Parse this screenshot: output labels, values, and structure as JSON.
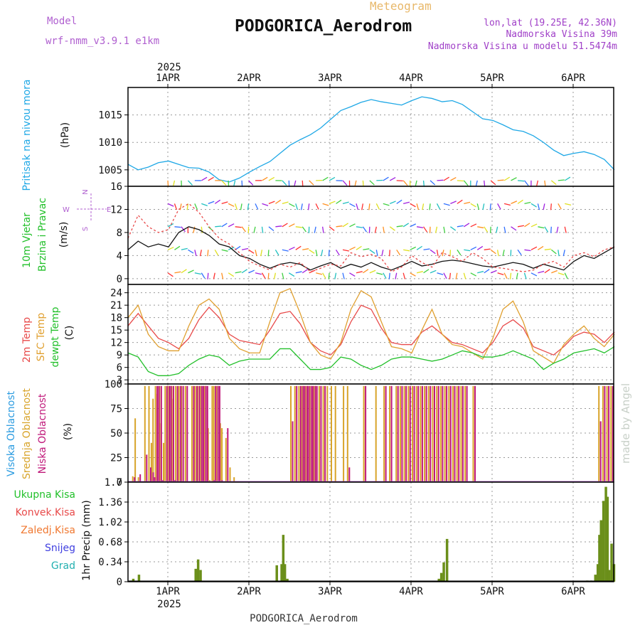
{
  "header": {
    "model_label": "Model",
    "model_name": "wrf-nmm_v3.9.1 e1km",
    "meteogram_label": "Meteogram",
    "station": "PODGORICA_Aerodrom",
    "lonlat": "lon,lat (19.25E, 42.36N)",
    "altitude": "Nadmorska Visina 39m",
    "model_altitude": "Nadmorska Visina u modelu 51.5474m",
    "footer_station": "PODGORICA_Aerodrom",
    "credit": "made by Angel"
  },
  "time_axis": {
    "year": "2025",
    "days": [
      "1APR",
      "2APR",
      "3APR",
      "4APR",
      "5APR",
      "6APR"
    ]
  },
  "colors": {
    "pressure": "#1fa8e6",
    "temp2m": "#e84a4a",
    "sfc_temp": "#e0a030",
    "dewpoint": "#22c02a",
    "cloud_high": "#2a9be0",
    "cloud_mid": "#d8a42a",
    "cloud_low": "#c0187a",
    "precip": "#6b8f1a",
    "precip_conv": "#e33",
    "model": "#b060d0",
    "info": "#a040c8",
    "meteogram": "#e8b86a"
  },
  "chart_data": [
    {
      "type": "line",
      "panel": "pressure",
      "ylabel": [
        "Pritisak na nivou mora",
        "(hPa)"
      ],
      "yticks": [
        "1005",
        "1010",
        "1015"
      ],
      "ylim": [
        1002,
        1020
      ],
      "x_days": [
        0.0,
        0.125,
        0.25,
        0.375,
        0.5,
        0.625,
        0.75,
        0.875,
        1.0,
        1.125,
        1.25,
        1.375,
        1.5,
        1.625,
        1.75,
        1.875,
        2.0,
        2.125,
        2.25,
        2.375,
        2.5,
        2.625,
        2.75,
        2.875,
        3.0,
        3.125,
        3.25,
        3.375,
        3.5,
        3.625,
        3.75,
        3.875,
        4.0,
        4.125,
        4.25,
        4.375,
        4.5,
        4.625,
        4.75,
        4.875,
        5.0,
        5.125,
        5.25,
        5.375,
        5.5,
        5.625,
        5.75,
        5.875,
        6.0
      ],
      "series": [
        {
          "values": [
            1006.0,
            1005.0,
            1005.5,
            1006.3,
            1006.6,
            1006.0,
            1005.4,
            1005.3,
            1004.6,
            1003.2,
            1002.8,
            1003.5,
            1004.6,
            1005.6,
            1006.5,
            1008.0,
            1009.5,
            1010.5,
            1011.4,
            1012.6,
            1014.2,
            1015.8,
            1016.5,
            1017.3,
            1017.8,
            1017.4,
            1017.1,
            1016.8,
            1017.6,
            1018.3,
            1018.0,
            1017.4,
            1017.6,
            1016.9,
            1015.6,
            1014.3,
            1014.0,
            1013.2,
            1012.3,
            1012.0,
            1011.2,
            1010.0,
            1008.6,
            1007.6,
            1008.0,
            1008.3,
            1007.8,
            1006.9,
            1005.0
          ]
        }
      ]
    },
    {
      "type": "line",
      "panel": "wind",
      "ylabel": [
        "10m Vjetar",
        "Brzina i Pravac",
        "(m/s)"
      ],
      "compass": {
        "n": "N",
        "s": "S",
        "e": "E",
        "w": "W"
      },
      "yticks": [
        "0",
        "4",
        "8",
        "12",
        "16"
      ],
      "ylim": [
        -1,
        16
      ],
      "x_days": [
        0.0,
        0.125,
        0.25,
        0.375,
        0.5,
        0.625,
        0.75,
        0.875,
        1.0,
        1.125,
        1.25,
        1.375,
        1.5,
        1.625,
        1.75,
        1.875,
        2.0,
        2.125,
        2.25,
        2.375,
        2.5,
        2.625,
        2.75,
        2.875,
        3.0,
        3.125,
        3.25,
        3.375,
        3.5,
        3.625,
        3.75,
        3.875,
        4.0,
        4.125,
        4.25,
        4.375,
        4.5,
        4.625,
        4.75,
        4.875,
        5.0,
        5.125,
        5.25,
        5.375,
        5.5,
        5.625,
        5.75,
        5.875,
        6.0
      ],
      "series": [
        {
          "name": "speed",
          "values": [
            5.0,
            6.5,
            5.5,
            6.0,
            5.5,
            8.0,
            9.0,
            8.5,
            7.5,
            6.0,
            5.5,
            4.0,
            3.5,
            2.5,
            1.8,
            2.5,
            2.8,
            2.5,
            1.5,
            2.2,
            2.8,
            1.8,
            2.5,
            2.0,
            2.8,
            2.0,
            1.5,
            2.2,
            3.0,
            2.2,
            2.5,
            3.0,
            3.2,
            3.0,
            2.6,
            2.2,
            2.0,
            2.4,
            2.8,
            2.5,
            1.8,
            2.5,
            2.0,
            1.5,
            3.0,
            4.0,
            3.5,
            4.5,
            5.5
          ]
        },
        {
          "name": "gust",
          "values": [
            7.0,
            11.0,
            9.0,
            8.0,
            8.5,
            12.0,
            13.0,
            11.5,
            9.0,
            7.0,
            6.0,
            4.5,
            3.0,
            2.2,
            1.5,
            2.5,
            2.0,
            2.8,
            1.2,
            1.8,
            2.5,
            2.2,
            4.5,
            3.8,
            4.2,
            3.5,
            1.2,
            2.0,
            4.0,
            2.8,
            2.0,
            4.5,
            3.8,
            3.0,
            4.5,
            3.5,
            2.0,
            1.8,
            1.5,
            1.2,
            1.5,
            2.5,
            3.0,
            2.0,
            4.0,
            4.5,
            3.8,
            5.0,
            5.5
          ]
        }
      ]
    },
    {
      "type": "line",
      "panel": "temperature",
      "ylabel": [
        "2m Temp",
        "SFC Temp",
        "dewpt Temp",
        "(C)"
      ],
      "yticks": [
        "3",
        "6",
        "9",
        "12",
        "15",
        "18",
        "21",
        "24"
      ],
      "ylim": [
        2,
        26
      ],
      "x_days": [
        0.0,
        0.125,
        0.25,
        0.375,
        0.5,
        0.625,
        0.75,
        0.875,
        1.0,
        1.125,
        1.25,
        1.375,
        1.5,
        1.625,
        1.75,
        1.875,
        2.0,
        2.125,
        2.25,
        2.375,
        2.5,
        2.625,
        2.75,
        2.875,
        3.0,
        3.125,
        3.25,
        3.375,
        3.5,
        3.625,
        3.75,
        3.875,
        4.0,
        4.125,
        4.25,
        4.375,
        4.5,
        4.625,
        4.75,
        4.875,
        5.0,
        5.125,
        5.25,
        5.375,
        5.5,
        5.625,
        5.75,
        5.875,
        6.0
      ],
      "series": [
        {
          "name": "2m Temp",
          "values": [
            16.0,
            19.0,
            16.0,
            13.0,
            12.0,
            10.5,
            13.0,
            17.5,
            20.5,
            18.0,
            14.0,
            12.5,
            12.0,
            11.5,
            15.0,
            19.0,
            19.5,
            16.5,
            12.0,
            10.0,
            9.0,
            11.5,
            17.0,
            21.0,
            20.0,
            15.5,
            12.0,
            11.5,
            11.5,
            14.5,
            16.0,
            14.0,
            12.0,
            11.5,
            10.5,
            9.5,
            12.0,
            16.0,
            17.5,
            15.5,
            11.0,
            10.0,
            9.0,
            11.0,
            13.5,
            14.5,
            14.0,
            12.0,
            14.5
          ]
        },
        {
          "name": "SFC Temp",
          "values": [
            18.0,
            21.0,
            14.0,
            11.0,
            10.0,
            10.0,
            16.0,
            21.0,
            22.5,
            20.0,
            13.0,
            10.5,
            9.5,
            9.5,
            17.0,
            24.0,
            25.0,
            19.0,
            12.0,
            9.0,
            8.0,
            12.0,
            20.0,
            24.5,
            23.0,
            17.0,
            11.0,
            10.5,
            9.5,
            15.0,
            20.0,
            14.0,
            11.5,
            11.0,
            9.5,
            8.0,
            13.0,
            20.0,
            22.0,
            17.0,
            10.0,
            8.5,
            7.0,
            11.5,
            14.0,
            16.0,
            13.0,
            11.0,
            14.0
          ]
        },
        {
          "name": "dewpt Temp",
          "values": [
            9.5,
            8.5,
            5.0,
            4.0,
            4.0,
            4.5,
            6.5,
            8.0,
            9.0,
            8.5,
            6.5,
            7.5,
            8.0,
            8.0,
            8.0,
            10.5,
            10.5,
            8.0,
            5.5,
            5.5,
            6.0,
            8.5,
            8.0,
            6.5,
            5.5,
            6.5,
            8.0,
            8.5,
            8.5,
            8.0,
            7.5,
            8.0,
            9.0,
            10.0,
            9.5,
            8.5,
            8.5,
            9.0,
            10.0,
            9.0,
            8.0,
            5.5,
            7.0,
            8.0,
            9.5,
            10.0,
            10.5,
            9.5,
            11.0
          ]
        }
      ]
    },
    {
      "type": "bar",
      "panel": "cloud",
      "ylabel": [
        "Visoka Oblacnost",
        "Srednja Oblacnost",
        "Niska Oblacnost",
        "(%)"
      ],
      "yticks": [
        "0",
        "25",
        "50",
        "75",
        "100"
      ],
      "ylim": [
        0,
        100
      ],
      "x_days": [
        0.05,
        0.08,
        0.12,
        0.2,
        0.25,
        0.28,
        0.3,
        0.33,
        0.35,
        0.38,
        0.4,
        0.43,
        0.45,
        0.48,
        0.5,
        0.53,
        0.55,
        0.58,
        0.62,
        0.65,
        0.7,
        0.78,
        0.82,
        0.85,
        0.88,
        0.9,
        0.93,
        0.95,
        0.98,
        1.0,
        1.03,
        1.05,
        1.08,
        1.1,
        1.13,
        1.15,
        1.2,
        1.25,
        1.3,
        2.0,
        2.05,
        2.1,
        2.13,
        2.15,
        2.18,
        2.2,
        2.23,
        2.25,
        2.28,
        2.3,
        2.35,
        2.4,
        2.45,
        2.5,
        2.55,
        2.65,
        2.7,
        2.9,
        3.05,
        3.15,
        3.22,
        3.3,
        3.35,
        3.4,
        3.45,
        3.5,
        3.55,
        3.6,
        3.65,
        3.7,
        3.75,
        3.8,
        3.85,
        3.9,
        3.95,
        4.0,
        4.05,
        4.1,
        4.15,
        4.25,
        5.8,
        5.85,
        5.9,
        5.95,
        6.0
      ],
      "series": [
        {
          "name": "Srednja Oblacnost",
          "values": [
            6,
            65,
            5,
            98,
            98,
            40,
            85,
            98,
            90,
            98,
            60,
            40,
            98,
            98,
            98,
            98,
            85,
            98,
            98,
            98,
            98,
            98,
            98,
            98,
            98,
            98,
            98,
            98,
            55,
            2,
            98,
            98,
            98,
            98,
            60,
            55,
            45,
            15,
            5,
            98,
            98,
            98,
            98,
            98,
            98,
            98,
            98,
            98,
            98,
            98,
            98,
            98,
            98,
            98,
            98,
            98,
            98,
            98,
            98,
            98,
            98,
            98,
            98,
            98,
            98,
            98,
            98,
            98,
            98,
            98,
            98,
            98,
            98,
            98,
            98,
            98,
            98,
            98,
            98,
            98,
            98,
            98,
            98,
            98,
            98
          ]
        },
        {
          "name": "Niska Oblacnost",
          "values": [
            5,
            0,
            8,
            28,
            15,
            10,
            5,
            98,
            98,
            98,
            2,
            0,
            98,
            98,
            98,
            98,
            2,
            98,
            98,
            98,
            98,
            98,
            98,
            98,
            98,
            98,
            98,
            98,
            0,
            0,
            2,
            98,
            98,
            98,
            2,
            0,
            55,
            0,
            0,
            62,
            98,
            98,
            98,
            98,
            98,
            98,
            98,
            98,
            98,
            98,
            98,
            98,
            0,
            0,
            0,
            0,
            15,
            98,
            0,
            98,
            98,
            98,
            98,
            98,
            98,
            98,
            98,
            98,
            98,
            98,
            98,
            98,
            98,
            98,
            98,
            98,
            98,
            98,
            98,
            98,
            62,
            98,
            98,
            98,
            98
          ]
        },
        {
          "name": "Visoka Oblacnost",
          "values": [
            0,
            0,
            0,
            0,
            0,
            0,
            0,
            0,
            0,
            0,
            0,
            0,
            0,
            0,
            0,
            0,
            0,
            0,
            0,
            0,
            0,
            0,
            0,
            0,
            0,
            0,
            0,
            0,
            0,
            0,
            0,
            0,
            0,
            0,
            0,
            0,
            0,
            0,
            0,
            0,
            0,
            0,
            0,
            0,
            0,
            0,
            0,
            0,
            0,
            0,
            0,
            0,
            0,
            0,
            0,
            0,
            0,
            0,
            0,
            0,
            0,
            0,
            0,
            0,
            0,
            0,
            0,
            0,
            0,
            0,
            0,
            0,
            0,
            0,
            0,
            0,
            0,
            0,
            0,
            0,
            0,
            0,
            0,
            0,
            98
          ]
        }
      ]
    },
    {
      "type": "bar",
      "panel": "precipitation",
      "ylabel": [
        "1hr Precip (mm)"
      ],
      "legend": [
        "Ukupna Kisa",
        "Konvek.Kisa",
        "Zaledj.Kisa",
        "Snijeg",
        "Grad"
      ],
      "yticks": [
        "0",
        "0.34",
        "0.68",
        "1.02",
        "1.36",
        "1.7"
      ],
      "ylim": [
        0,
        1.7
      ],
      "x_days": [
        0.02,
        0.05,
        0.12,
        0.82,
        0.85,
        0.88,
        1.82,
        1.88,
        1.9,
        1.92,
        1.95,
        3.82,
        3.85,
        3.88,
        3.92,
        5.65,
        5.7,
        5.75,
        5.78,
        5.8,
        5.82,
        5.85,
        5.88,
        5.9,
        5.92,
        5.95,
        5.98,
        6.0
      ],
      "series": [
        {
          "name": "Ukupna Kisa",
          "values": [
            0.02,
            0.05,
            0.12,
            0.22,
            0.38,
            0.2,
            0.28,
            0.3,
            0.8,
            0.3,
            0.05,
            0.05,
            0.15,
            0.33,
            0.73,
            0.02,
            0.02,
            0.12,
            0.3,
            0.8,
            1.05,
            1.38,
            1.62,
            1.45,
            0.2,
            0.65,
            0.3,
            1.35
          ]
        }
      ]
    }
  ]
}
